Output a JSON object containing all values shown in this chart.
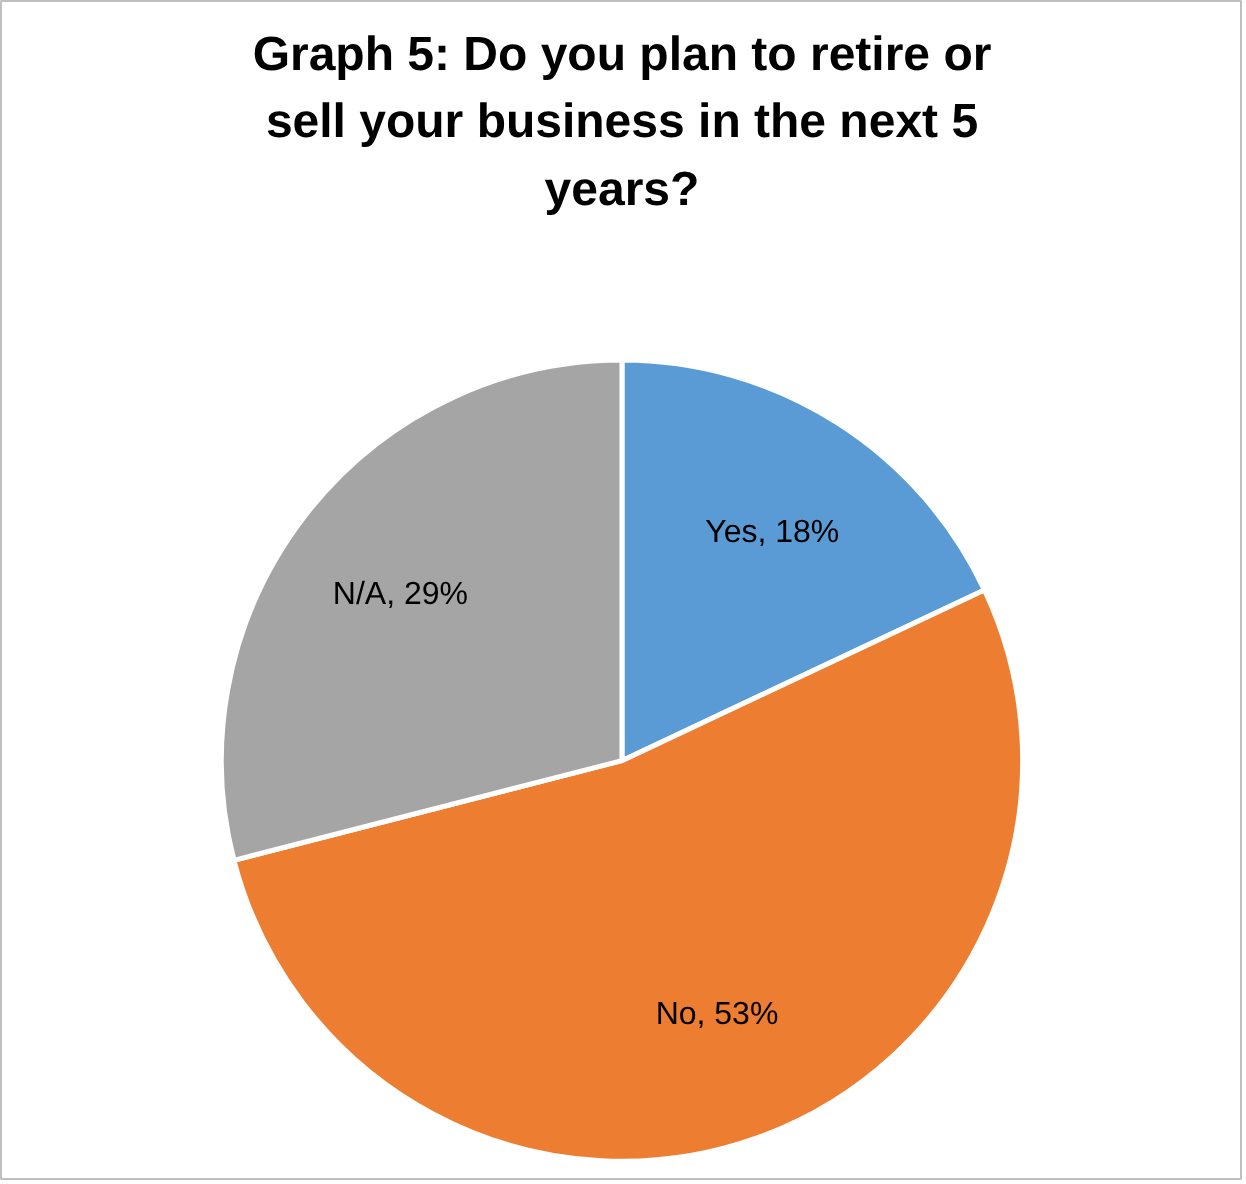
{
  "chart_data": {
    "type": "pie",
    "title": "Graph 5: Do you plan to retire or sell your business in the next 5 years?",
    "categories": [
      "Yes",
      "No",
      "N/A"
    ],
    "values": [
      18,
      53,
      29
    ],
    "colors": [
      "#5b9bd5",
      "#ed7d31",
      "#a5a5a5"
    ],
    "value_labels": [
      "18%",
      "53%",
      "29%"
    ],
    "legend": false
  }
}
